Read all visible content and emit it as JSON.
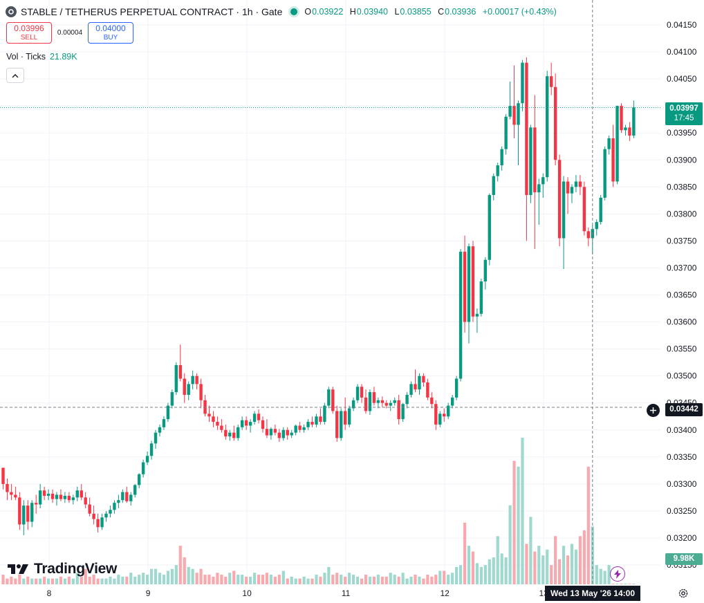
{
  "header": {
    "title": "STABLE / TETHERUS PERPETUAL CONTRACT · 1h · Gate",
    "o_label": "O",
    "o_value": "0.03922",
    "h_label": "H",
    "h_value": "0.03940",
    "l_label": "L",
    "l_value": "0.03855",
    "c_label": "C",
    "c_value": "0.03936",
    "change": "+0.00017 (+0.43%)"
  },
  "trade": {
    "sell_price": "0.03996",
    "sell_label": "SELL",
    "spread": "0.00004",
    "buy_price": "0.04000",
    "buy_label": "BUY"
  },
  "volume_legend": {
    "label": "Vol · Ticks",
    "value": "21.89K"
  },
  "labels": {
    "current_price": "0.03997",
    "countdown": "17:45",
    "crosshair_price": "0.03442",
    "crosshair_time": "Wed 13 May '26   14:00",
    "volume_value": "9.98K",
    "brand": "TradingView"
  },
  "colors": {
    "up": "#089981",
    "down": "#f23645",
    "vol_up": "#9fd8cf",
    "vol_down": "#f7a9ae",
    "grid": "#f0f3fa",
    "axis_text": "#131722"
  },
  "chart_data": {
    "type": "candlestick",
    "timeframe": "1h",
    "price_axis": {
      "ticks": [
        "0.04150",
        "0.04100",
        "0.04050",
        "0.04000",
        "0.03950",
        "0.03900",
        "0.03850",
        "0.03800",
        "0.03750",
        "0.03700",
        "0.03650",
        "0.03600",
        "0.03550",
        "0.03500",
        "0.03450",
        "0.03400",
        "0.03350",
        "0.03300",
        "0.03250",
        "0.03200",
        "0.03150"
      ],
      "ylim": [
        0.03134,
        0.04178
      ],
      "scale": "linear"
    },
    "time_axis": {
      "labels": [
        "8",
        "9",
        "10",
        "11",
        "12",
        "13"
      ],
      "label_positions": [
        12,
        36,
        60,
        84,
        108,
        132
      ]
    },
    "current_price": 0.03997,
    "crosshair": {
      "price": 0.03442,
      "index": 143
    },
    "candles_ohlc": [
      [
        0.0333,
        0.0333,
        0.0329,
        0.033
      ],
      [
        0.033,
        0.0331,
        0.0327,
        0.03285
      ],
      [
        0.03285,
        0.033,
        0.0327,
        0.0328
      ],
      [
        0.0328,
        0.03295,
        0.0327,
        0.03275
      ],
      [
        0.03275,
        0.03285,
        0.03215,
        0.03225
      ],
      [
        0.03225,
        0.0327,
        0.03205,
        0.0326
      ],
      [
        0.0326,
        0.0327,
        0.03215,
        0.0323
      ],
      [
        0.0323,
        0.0327,
        0.0322,
        0.03265
      ],
      [
        0.03265,
        0.0328,
        0.03245,
        0.03262
      ],
      [
        0.03262,
        0.033,
        0.03255,
        0.03288
      ],
      [
        0.03288,
        0.03295,
        0.0327,
        0.03278
      ],
      [
        0.03278,
        0.0329,
        0.0327,
        0.03282
      ],
      [
        0.03282,
        0.0329,
        0.03265,
        0.03272
      ],
      [
        0.03272,
        0.03285,
        0.0326,
        0.0328
      ],
      [
        0.0328,
        0.0329,
        0.03268,
        0.03272
      ],
      [
        0.03272,
        0.03285,
        0.03265,
        0.03278
      ],
      [
        0.03278,
        0.03285,
        0.03265,
        0.0327
      ],
      [
        0.0327,
        0.0328,
        0.03262,
        0.03275
      ],
      [
        0.03275,
        0.03295,
        0.03268,
        0.03288
      ],
      [
        0.03288,
        0.033,
        0.0327,
        0.03275
      ],
      [
        0.03275,
        0.03285,
        0.03255,
        0.03262
      ],
      [
        0.03262,
        0.03275,
        0.0324,
        0.03245
      ],
      [
        0.03245,
        0.0326,
        0.03225,
        0.03235
      ],
      [
        0.03235,
        0.03245,
        0.0321,
        0.0322
      ],
      [
        0.0322,
        0.03245,
        0.03215,
        0.03238
      ],
      [
        0.03238,
        0.0325,
        0.0323,
        0.03245
      ],
      [
        0.03245,
        0.0326,
        0.03238,
        0.03252
      ],
      [
        0.03252,
        0.0327,
        0.03245,
        0.03265
      ],
      [
        0.03265,
        0.0328,
        0.03255,
        0.0327
      ],
      [
        0.0327,
        0.0329,
        0.03265,
        0.03285
      ],
      [
        0.03285,
        0.03295,
        0.03265,
        0.03268
      ],
      [
        0.03268,
        0.03285,
        0.0326,
        0.0328
      ],
      [
        0.0328,
        0.033,
        0.03275,
        0.03298
      ],
      [
        0.03298,
        0.0332,
        0.03292,
        0.03318
      ],
      [
        0.03318,
        0.03345,
        0.03312,
        0.0334
      ],
      [
        0.0334,
        0.0336,
        0.03335,
        0.03352
      ],
      [
        0.03352,
        0.0338,
        0.03345,
        0.03375
      ],
      [
        0.03375,
        0.034,
        0.03365,
        0.03395
      ],
      [
        0.03395,
        0.0341,
        0.03388,
        0.03405
      ],
      [
        0.03405,
        0.03425,
        0.034,
        0.0342
      ],
      [
        0.0342,
        0.0345,
        0.03415,
        0.03445
      ],
      [
        0.03445,
        0.03475,
        0.0344,
        0.0347
      ],
      [
        0.0347,
        0.03525,
        0.03465,
        0.0352
      ],
      [
        0.0352,
        0.03558,
        0.0349,
        0.03495
      ],
      [
        0.03495,
        0.03505,
        0.0345,
        0.03465
      ],
      [
        0.03465,
        0.0349,
        0.03455,
        0.03485
      ],
      [
        0.03485,
        0.0351,
        0.03475,
        0.035
      ],
      [
        0.035,
        0.03505,
        0.03475,
        0.03485
      ],
      [
        0.03485,
        0.03495,
        0.0344,
        0.03455
      ],
      [
        0.03455,
        0.03465,
        0.03425,
        0.0343
      ],
      [
        0.0343,
        0.03445,
        0.03415,
        0.03425
      ],
      [
        0.03425,
        0.03435,
        0.03405,
        0.03415
      ],
      [
        0.03415,
        0.03425,
        0.034,
        0.03408
      ],
      [
        0.03408,
        0.0342,
        0.03395,
        0.034
      ],
      [
        0.034,
        0.0341,
        0.03382,
        0.03388
      ],
      [
        0.03388,
        0.034,
        0.0338,
        0.03395
      ],
      [
        0.03395,
        0.03408,
        0.0338,
        0.03385
      ],
      [
        0.03385,
        0.0341,
        0.0338,
        0.03405
      ],
      [
        0.03405,
        0.03425,
        0.034,
        0.03418
      ],
      [
        0.03418,
        0.03425,
        0.034,
        0.03408
      ],
      [
        0.03408,
        0.0342,
        0.03395,
        0.03415
      ],
      [
        0.03415,
        0.03435,
        0.0341,
        0.0343
      ],
      [
        0.0343,
        0.03438,
        0.03412,
        0.03418
      ],
      [
        0.03418,
        0.03425,
        0.03395,
        0.03402
      ],
      [
        0.03402,
        0.0342,
        0.03385,
        0.0339
      ],
      [
        0.0339,
        0.03405,
        0.03382,
        0.03402
      ],
      [
        0.03402,
        0.0341,
        0.0339,
        0.03395
      ],
      [
        0.03395,
        0.03402,
        0.03378,
        0.03385
      ],
      [
        0.03385,
        0.03405,
        0.0338,
        0.034
      ],
      [
        0.034,
        0.03405,
        0.03382,
        0.0339
      ],
      [
        0.0339,
        0.034,
        0.03385,
        0.03395
      ],
      [
        0.03395,
        0.0341,
        0.0339,
        0.03408
      ],
      [
        0.03408,
        0.03415,
        0.03395,
        0.034
      ],
      [
        0.034,
        0.0341,
        0.03395,
        0.03405
      ],
      [
        0.03405,
        0.0342,
        0.034,
        0.03415
      ],
      [
        0.03415,
        0.03425,
        0.03405,
        0.0341
      ],
      [
        0.0341,
        0.0343,
        0.03405,
        0.03425
      ],
      [
        0.03425,
        0.0344,
        0.0341,
        0.03415
      ],
      [
        0.03415,
        0.0345,
        0.0341,
        0.03445
      ],
      [
        0.03445,
        0.0348,
        0.0344,
        0.03475
      ],
      [
        0.03475,
        0.0348,
        0.0343,
        0.03435
      ],
      [
        0.03435,
        0.03445,
        0.03378,
        0.03385
      ],
      [
        0.03385,
        0.0344,
        0.0338,
        0.03435
      ],
      [
        0.03435,
        0.0346,
        0.034,
        0.0341
      ],
      [
        0.0341,
        0.03445,
        0.03405,
        0.0344
      ],
      [
        0.0344,
        0.0346,
        0.03435,
        0.03455
      ],
      [
        0.03455,
        0.03485,
        0.0345,
        0.0348
      ],
      [
        0.0348,
        0.03485,
        0.0345,
        0.0346
      ],
      [
        0.0346,
        0.03475,
        0.0343,
        0.03435
      ],
      [
        0.03435,
        0.03475,
        0.03428,
        0.0347
      ],
      [
        0.0347,
        0.0348,
        0.03445,
        0.0345
      ],
      [
        0.0345,
        0.0346,
        0.0344,
        0.03455
      ],
      [
        0.03455,
        0.03462,
        0.03442,
        0.0345
      ],
      [
        0.0345,
        0.03455,
        0.0344,
        0.03445
      ],
      [
        0.03445,
        0.03455,
        0.03435,
        0.0345
      ],
      [
        0.0345,
        0.0346,
        0.03445,
        0.03455
      ],
      [
        0.03455,
        0.03465,
        0.0341,
        0.0342
      ],
      [
        0.0342,
        0.0345,
        0.03415,
        0.03448
      ],
      [
        0.03448,
        0.0347,
        0.0344,
        0.03465
      ],
      [
        0.03465,
        0.0349,
        0.0346,
        0.03485
      ],
      [
        0.03485,
        0.03512,
        0.0347,
        0.03475
      ],
      [
        0.03475,
        0.03505,
        0.03465,
        0.035
      ],
      [
        0.035,
        0.03505,
        0.0348,
        0.03488
      ],
      [
        0.03488,
        0.03495,
        0.03455,
        0.0346
      ],
      [
        0.0346,
        0.0347,
        0.0344,
        0.03448
      ],
      [
        0.03448,
        0.03455,
        0.034,
        0.0341
      ],
      [
        0.0341,
        0.03435,
        0.03405,
        0.0343
      ],
      [
        0.0343,
        0.0344,
        0.03415,
        0.03425
      ],
      [
        0.03425,
        0.0345,
        0.0342,
        0.03445
      ],
      [
        0.03445,
        0.03465,
        0.0344,
        0.0346
      ],
      [
        0.0346,
        0.035,
        0.03455,
        0.03495
      ],
      [
        0.03495,
        0.03735,
        0.0349,
        0.0373
      ],
      [
        0.0373,
        0.0376,
        0.0358,
        0.036
      ],
      [
        0.036,
        0.03745,
        0.0356,
        0.0374
      ],
      [
        0.0374,
        0.0375,
        0.036,
        0.0361
      ],
      [
        0.0361,
        0.03625,
        0.0358,
        0.03615
      ],
      [
        0.03615,
        0.0368,
        0.0361,
        0.03675
      ],
      [
        0.03675,
        0.0372,
        0.0366,
        0.03715
      ],
      [
        0.03715,
        0.03838,
        0.03705,
        0.03835
      ],
      [
        0.03835,
        0.03875,
        0.03825,
        0.0387
      ],
      [
        0.0387,
        0.03895,
        0.0386,
        0.0389
      ],
      [
        0.0389,
        0.03925,
        0.0388,
        0.0392
      ],
      [
        0.0392,
        0.03985,
        0.0391,
        0.0398
      ],
      [
        0.0398,
        0.04045,
        0.03975,
        0.04
      ],
      [
        0.04,
        0.04075,
        0.0394,
        0.03965
      ],
      [
        0.03965,
        0.0401,
        0.0389,
        0.04005
      ],
      [
        0.04005,
        0.04085,
        0.0399,
        0.0408
      ],
      [
        0.0408,
        0.0409,
        0.0375,
        0.03835
      ],
      [
        0.03835,
        0.03965,
        0.0382,
        0.0396
      ],
      [
        0.0396,
        0.0402,
        0.03735,
        0.0384
      ],
      [
        0.0384,
        0.03865,
        0.0378,
        0.03855
      ],
      [
        0.03855,
        0.03875,
        0.0383,
        0.03868
      ],
      [
        0.03868,
        0.04065,
        0.0386,
        0.04055
      ],
      [
        0.04055,
        0.0408,
        0.0402,
        0.04035
      ],
      [
        0.04035,
        0.0406,
        0.0389,
        0.039
      ],
      [
        0.039,
        0.0391,
        0.0374,
        0.03755
      ],
      [
        0.03755,
        0.0387,
        0.03698,
        0.0386
      ],
      [
        0.0386,
        0.03868,
        0.038,
        0.03838
      ],
      [
        0.03838,
        0.03855,
        0.0382,
        0.0385
      ],
      [
        0.0385,
        0.03872,
        0.0384,
        0.0386
      ],
      [
        0.0386,
        0.03872,
        0.03835,
        0.0385
      ],
      [
        0.0385,
        0.0386,
        0.0376,
        0.03768
      ],
      [
        0.03768,
        0.03775,
        0.0374,
        0.03755
      ],
      [
        0.03755,
        0.0378,
        0.03725,
        0.03772
      ],
      [
        0.03772,
        0.0379,
        0.0376,
        0.03785
      ],
      [
        0.03785,
        0.03835,
        0.0378,
        0.0383
      ],
      [
        0.0383,
        0.03925,
        0.03825,
        0.0392
      ],
      [
        0.0392,
        0.03945,
        0.0391,
        0.0394
      ],
      [
        0.0394,
        0.03965,
        0.0385,
        0.0386
      ],
      [
        0.0386,
        0.04,
        0.03855,
        0.04
      ],
      [
        0.04,
        0.04005,
        0.0395,
        0.03955
      ],
      [
        0.03955,
        0.03965,
        0.03945,
        0.0396
      ],
      [
        0.0396,
        0.0397,
        0.03935,
        0.03945
      ],
      [
        0.03945,
        0.0401,
        0.0394,
        0.03997
      ]
    ],
    "volume_ticks_k": [
      0.5,
      0.3,
      0.4,
      0.3,
      0.5,
      0.3,
      0.4,
      0.3,
      0.3,
      0.3,
      0.4,
      0.3,
      0.3,
      0.3,
      0.4,
      0.3,
      0.4,
      0.3,
      0.6,
      0.4,
      0.8,
      0.4,
      0.5,
      0.3,
      0.3,
      0.3,
      0.4,
      0.3,
      0.5,
      0.4,
      0.4,
      0.6,
      0.4,
      0.5,
      0.6,
      0.5,
      0.8,
      0.8,
      0.6,
      0.5,
      0.7,
      0.8,
      1.0,
      2.0,
      1.4,
      0.9,
      0.8,
      0.6,
      0.8,
      0.5,
      0.5,
      0.4,
      0.6,
      0.5,
      0.4,
      0.6,
      0.7,
      0.5,
      0.5,
      0.4,
      0.4,
      0.6,
      0.5,
      0.5,
      0.6,
      0.5,
      0.4,
      0.5,
      0.7,
      0.3,
      0.4,
      0.3,
      0.3,
      0.4,
      0.3,
      0.3,
      0.5,
      0.4,
      0.6,
      0.9,
      0.5,
      0.6,
      0.5,
      0.4,
      0.6,
      0.5,
      0.4,
      0.3,
      0.5,
      0.4,
      0.4,
      0.5,
      0.4,
      0.4,
      0.6,
      0.5,
      0.4,
      0.6,
      0.3,
      0.4,
      0.5,
      0.4,
      0.3,
      0.5,
      0.4,
      0.5,
      0.7,
      0.7,
      0.5,
      0.6,
      0.9,
      1.0,
      3.2,
      2.0,
      1.7,
      1.1,
      0.9,
      1.0,
      1.3,
      1.4,
      2.5,
      1.6,
      1.4,
      4.1,
      6.4,
      6.1,
      7.6,
      2.1,
      3.5,
      1.7,
      2.0,
      1.5,
      1.8,
      1.0,
      2.5,
      1.3,
      2.0,
      1.5,
      2.1,
      1.8,
      2.5,
      2.8,
      6.1,
      3.0,
      1.0,
      0.8,
      0.7,
      1.0
    ]
  }
}
